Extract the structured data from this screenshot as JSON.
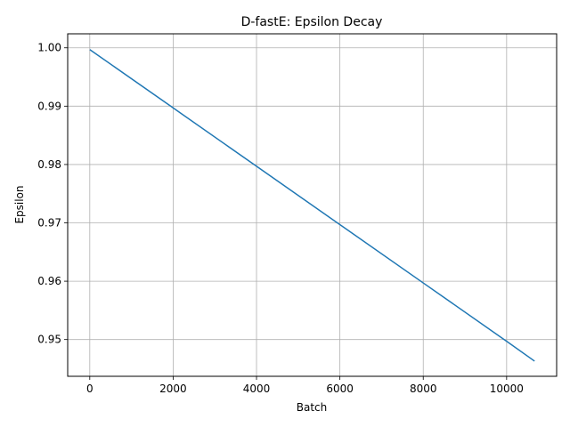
{
  "chart_data": {
    "type": "line",
    "title": "D-fastE: Epsilon Decay",
    "xlabel": "Batch",
    "ylabel": "Epsilon",
    "xlim": [
      -530,
      11200
    ],
    "ylim": [
      0.9437,
      1.0024
    ],
    "xticks": [
      {
        "value": 0,
        "label": "0"
      },
      {
        "value": 2000,
        "label": "2000"
      },
      {
        "value": 4000,
        "label": "4000"
      },
      {
        "value": 6000,
        "label": "6000"
      },
      {
        "value": 8000,
        "label": "8000"
      },
      {
        "value": 10000,
        "label": "10000"
      }
    ],
    "yticks": [
      {
        "value": 0.95,
        "label": "0.95"
      },
      {
        "value": 0.96,
        "label": "0.96"
      },
      {
        "value": 0.97,
        "label": "0.97"
      },
      {
        "value": 0.98,
        "label": "0.98"
      },
      {
        "value": 0.99,
        "label": "0.99"
      },
      {
        "value": 1.0,
        "label": "1.00"
      }
    ],
    "grid": true,
    "series": [
      {
        "color": "#1f77b4",
        "x": [
          0,
          2000,
          4000,
          6000,
          8000,
          10000,
          10670
        ],
        "y": [
          0.9997,
          0.9897,
          0.9797,
          0.9697,
          0.9597,
          0.9497,
          0.9463
        ]
      }
    ]
  }
}
